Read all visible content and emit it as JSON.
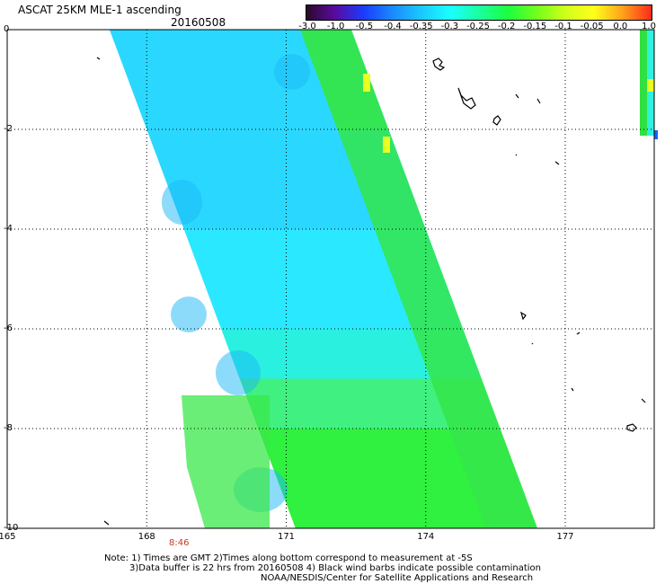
{
  "header": {
    "title": "ASCAT 25KM MLE-1 ascending",
    "date": "20160508"
  },
  "colorbar": {
    "labels": [
      "-3.0",
      "-1.0",
      "-0.5",
      "-0.4",
      "-0.35",
      "-0.3",
      "-0.25",
      "-0.2",
      "-0.15",
      "-0.1",
      "-0.05",
      "0.0",
      "1.0"
    ],
    "colors": [
      "#2a0a2a",
      "#5a0aa0",
      "#1a3cff",
      "#1a8aff",
      "#1ac8ff",
      "#1affff",
      "#1affa0",
      "#1aff40",
      "#70ff1a",
      "#d0ff1a",
      "#ffff1a",
      "#ffa01a",
      "#ff2a1a"
    ]
  },
  "axes": {
    "lat_labels": [
      "0",
      "-2",
      "-4",
      "-6",
      "-8",
      "-10"
    ],
    "lon_labels": [
      "165",
      "168",
      "171",
      "174",
      "177"
    ]
  },
  "pass_time": "8:46",
  "notes": {
    "line1": "Note: 1) Times are GMT 2)Times along bottom correspond to measurement at -5S",
    "line2": "3)Data buffer is 22 hrs from 20160508 4) Black wind barbs indicate possible contamination",
    "line3": "NOAA/NESDIS/Center for Satellite Applications and Research"
  },
  "swaths": {
    "main": {
      "west_edge_lon": [
        167.2,
        167.6,
        168.0,
        168.4,
        168.8,
        169.2,
        169.6,
        170.0,
        170.4,
        170.8
      ],
      "band_colors": [
        "#2ad8ff",
        "#2ad8ff",
        "#2ad8ff",
        "#2ad8ff",
        "#2ae8ff",
        "#2ae8ff",
        "#2af0e0",
        "#40f080",
        "#30f040",
        "#30f040"
      ]
    },
    "east_strip_color": "#30e040"
  }
}
